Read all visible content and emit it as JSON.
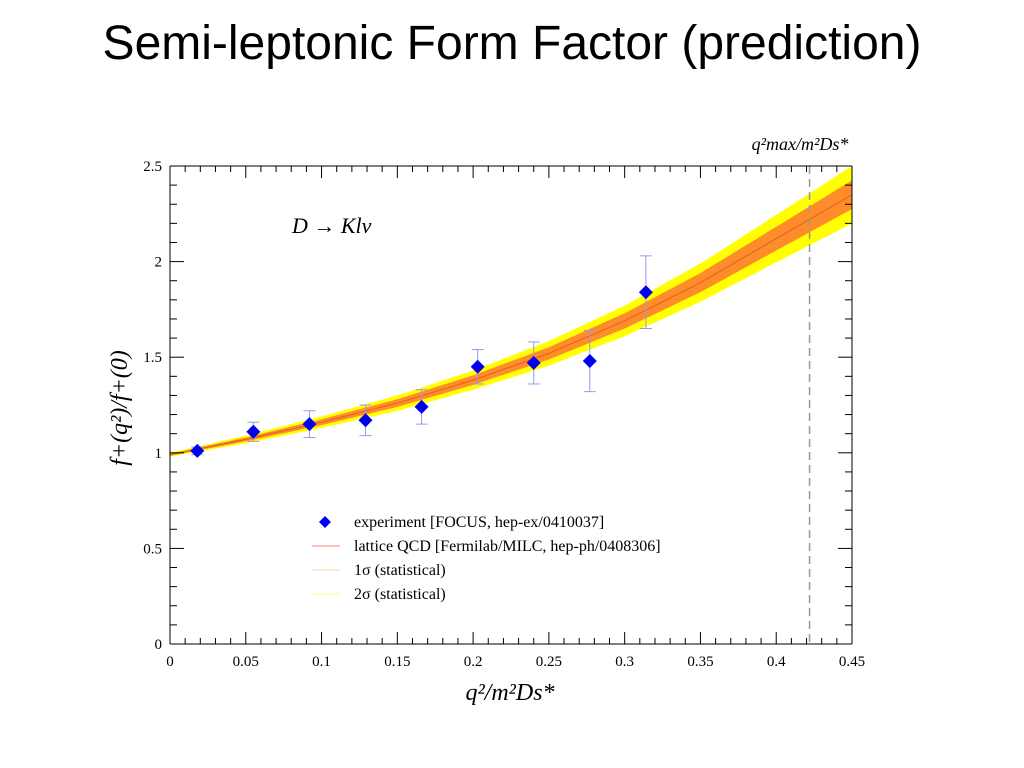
{
  "slide": {
    "title": "Semi-leptonic Form Factor (prediction)"
  },
  "chart_data": {
    "type": "scatter",
    "process": "D → Klν",
    "qmax_label": "q²max/m²Ds*",
    "xlabel": "q²/m²Ds*",
    "ylabel": "f+(q²)/f+(0)",
    "xlim": [
      0,
      0.45
    ],
    "ylim": [
      0,
      2.5
    ],
    "x_ticks": [
      "0",
      "0.05",
      "0.1",
      "0.15",
      "0.2",
      "0.25",
      "0.3",
      "0.35",
      "0.4",
      "0.45"
    ],
    "y_ticks": [
      "0",
      "0.5",
      "1",
      "1.5",
      "2",
      "2.5"
    ],
    "qmax_x": 0.422,
    "grid": false,
    "legend_position": "bottom-center",
    "legend": [
      {
        "marker": "diamond",
        "label": "experiment [FOCUS, hep-ex/0410037]"
      },
      {
        "marker": "line",
        "label": "lattice QCD [Fermilab/MILC, hep-ph/0408306]"
      },
      {
        "marker": "band",
        "label": "1σ (statistical)"
      },
      {
        "marker": "band",
        "label": "2σ (statistical)"
      }
    ],
    "experiment": {
      "name": "experiment [FOCUS, hep-ex/0410037]",
      "points": [
        {
          "x": 0.018,
          "y": 1.01,
          "err": 0.02
        },
        {
          "x": 0.055,
          "y": 1.11,
          "err": 0.05
        },
        {
          "x": 0.092,
          "y": 1.15,
          "err": 0.07
        },
        {
          "x": 0.129,
          "y": 1.17,
          "err": 0.08
        },
        {
          "x": 0.166,
          "y": 1.24,
          "err": 0.09
        },
        {
          "x": 0.203,
          "y": 1.45,
          "err": 0.09
        },
        {
          "x": 0.24,
          "y": 1.47,
          "err": 0.11
        },
        {
          "x": 0.277,
          "y": 1.48,
          "err": 0.16
        },
        {
          "x": 0.314,
          "y": 1.84,
          "err": 0.19
        }
      ]
    },
    "lattice": {
      "name": "lattice QCD [Fermilab/MILC, hep-ph/0408306]",
      "x": [
        0,
        0.05,
        0.1,
        0.15,
        0.2,
        0.25,
        0.3,
        0.35,
        0.4,
        0.45
      ],
      "y": [
        0.99,
        1.07,
        1.16,
        1.26,
        1.38,
        1.52,
        1.69,
        1.89,
        2.12,
        2.35
      ],
      "sigma1": [
        0.005,
        0.01,
        0.015,
        0.02,
        0.025,
        0.032,
        0.04,
        0.05,
        0.062,
        0.075
      ],
      "sigma2": [
        0.01,
        0.02,
        0.03,
        0.04,
        0.05,
        0.064,
        0.08,
        0.1,
        0.124,
        0.15
      ]
    },
    "colors": {
      "experiment": "#0000ee",
      "errorbar": "#9999ee",
      "central": "#e06020",
      "band1": "#ff8c2a",
      "band2": "#ffff00",
      "qmax_line": "#999999",
      "axis": "#000000"
    }
  }
}
